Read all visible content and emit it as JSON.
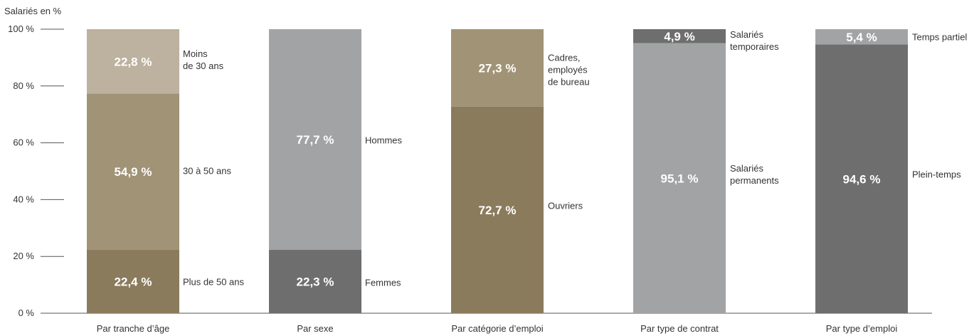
{
  "chart_data": {
    "type": "bar",
    "stacked": true,
    "ylabel": "Salariés en %",
    "ylim": [
      0,
      100
    ],
    "yticks": [
      "0 %",
      "20 %",
      "40 %",
      "60 %",
      "80 %",
      "100 %"
    ],
    "ytick_values": [
      0,
      20,
      40,
      60,
      80,
      100
    ],
    "grid": false,
    "categories": [
      "Par tranche d’âge",
      "Par sexe",
      "Par catégorie d’emploi",
      "Par type de contrat",
      "Par type d’emploi"
    ],
    "stacks": [
      {
        "category": "Par tranche d’âge",
        "segments": [
          {
            "name": "Plus de 50 ans",
            "value": 22.4,
            "label": "22,4 %",
            "color": "#8b7b5d"
          },
          {
            "name": "30 à 50 ans",
            "value": 54.9,
            "label": "54,9 %",
            "color": "#a19375"
          },
          {
            "name": "Moins de 30 ans",
            "value": 22.8,
            "label": "22,8 %",
            "color": "#bdb19f"
          }
        ]
      },
      {
        "category": "Par sexe",
        "segments": [
          {
            "name": "Femmes",
            "value": 22.3,
            "label": "22,3 %",
            "color": "#6e6e6e"
          },
          {
            "name": "Hommes",
            "value": 77.7,
            "label": "77,7 %",
            "color": "#a2a3a4"
          }
        ]
      },
      {
        "category": "Par catégorie d’emploi",
        "segments": [
          {
            "name": "Ouvriers",
            "value": 72.7,
            "label": "72,7 %",
            "color": "#8b7b5d"
          },
          {
            "name": "Cadres, employés de bureau",
            "value": 27.3,
            "label": "27,3 %",
            "color": "#a19375"
          }
        ]
      },
      {
        "category": "Par type de contrat",
        "segments": [
          {
            "name": "Salariés permanents",
            "value": 95.1,
            "label": "95,1 %",
            "color": "#a2a3a4"
          },
          {
            "name": "Salariés temporaires",
            "value": 4.9,
            "label": "4,9 %",
            "color": "#6e6e6e"
          }
        ]
      },
      {
        "category": "Par type d’emploi",
        "segments": [
          {
            "name": "Plein-temps",
            "value": 94.6,
            "label": "94,6 %",
            "color": "#6e6e6e"
          },
          {
            "name": "Temps partiel",
            "value": 5.4,
            "label": "5,4 %",
            "color": "#a2a3a4"
          }
        ]
      }
    ]
  }
}
